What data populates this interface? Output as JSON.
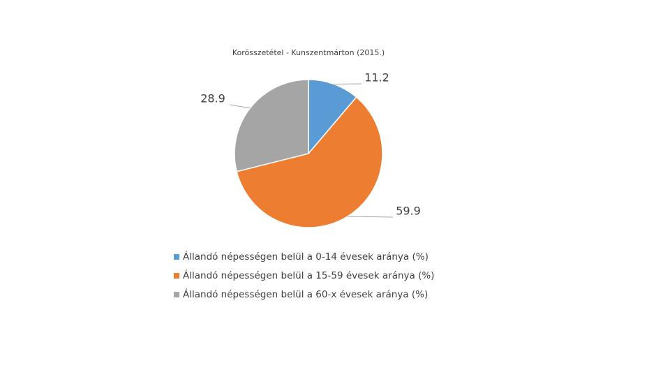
{
  "chart_data": {
    "type": "pie",
    "title": "Korösszetétel - Kunszentmárton (2015.)",
    "categories": [
      "Állandó népességen belül a 0-14 évesek aránya (%)",
      "Állandó népességen belül a 15-59 évesek aránya (%)",
      "Állandó népességen belül a 60-x évesek aránya (%)"
    ],
    "values": [
      11.2,
      59.9,
      28.9
    ],
    "colors": [
      "#5b9bd5",
      "#ed7d31",
      "#a5a5a5"
    ]
  }
}
